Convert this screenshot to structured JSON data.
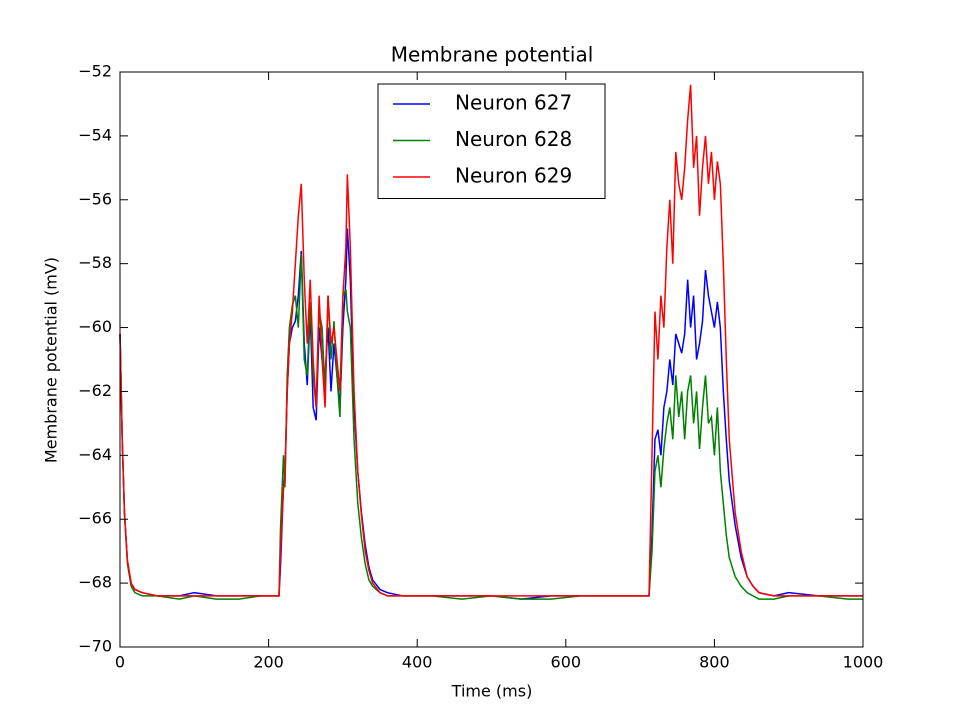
{
  "chart_data": {
    "type": "line",
    "title": "Membrane potential",
    "xlabel": "Time (ms)",
    "ylabel": "Membrane potential (mV)",
    "x": [
      0,
      3,
      6,
      10,
      15,
      20,
      30,
      50,
      80,
      100,
      130,
      160,
      190,
      210,
      214,
      216,
      220,
      222,
      225,
      228,
      232,
      236,
      240,
      244,
      248,
      252,
      256,
      260,
      264,
      268,
      272,
      276,
      280,
      284,
      288,
      292,
      296,
      300,
      304,
      306,
      310,
      315,
      320,
      325,
      330,
      335,
      340,
      350,
      360,
      380,
      420,
      460,
      500,
      540,
      580,
      620,
      660,
      700,
      712,
      716,
      720,
      724,
      728,
      732,
      736,
      740,
      744,
      748,
      752,
      756,
      760,
      764,
      768,
      772,
      776,
      780,
      784,
      788,
      792,
      796,
      800,
      804,
      808,
      812,
      816,
      820,
      828,
      836,
      844,
      852,
      860,
      880,
      900,
      940,
      980,
      1000
    ],
    "series": [
      {
        "name": "Neuron 627",
        "color": "#0000ff",
        "values": [
          -60.2,
          -63.5,
          -65.8,
          -67.3,
          -68.0,
          -68.2,
          -68.3,
          -68.4,
          -68.4,
          -68.3,
          -68.4,
          -68.4,
          -68.4,
          -68.4,
          -68.4,
          -67.5,
          -65.0,
          -64.5,
          -62.0,
          -60.5,
          -60.0,
          -59.8,
          -59.0,
          -57.6,
          -60.5,
          -61.8,
          -59.5,
          -62.5,
          -62.9,
          -60.0,
          -61.0,
          -61.5,
          -60.0,
          -62.0,
          -60.5,
          -61.5,
          -62.5,
          -60.0,
          -58.5,
          -56.9,
          -58.5,
          -62.5,
          -64.5,
          -65.8,
          -66.8,
          -67.5,
          -67.9,
          -68.2,
          -68.3,
          -68.4,
          -68.4,
          -68.4,
          -68.4,
          -68.5,
          -68.4,
          -68.4,
          -68.4,
          -68.4,
          -68.4,
          -66.5,
          -63.5,
          -63.2,
          -64.0,
          -62.5,
          -62.0,
          -61.0,
          -61.8,
          -60.2,
          -60.5,
          -60.8,
          -60.2,
          -58.5,
          -60.0,
          -59.0,
          -61.0,
          -60.5,
          -59.8,
          -58.2,
          -59.0,
          -59.5,
          -60.0,
          -59.2,
          -60.0,
          -62.0,
          -63.5,
          -64.8,
          -66.2,
          -67.2,
          -67.8,
          -68.1,
          -68.3,
          -68.4,
          -68.3,
          -68.4,
          -68.4,
          -68.4
        ]
      },
      {
        "name": "Neuron 628",
        "color": "#008000",
        "values": [
          -60.2,
          -63.5,
          -65.8,
          -67.4,
          -68.1,
          -68.3,
          -68.4,
          -68.4,
          -68.5,
          -68.4,
          -68.5,
          -68.5,
          -68.4,
          -68.4,
          -68.4,
          -66.3,
          -64.0,
          -65.0,
          -61.5,
          -60.0,
          -59.3,
          -59.0,
          -60.0,
          -57.7,
          -61.0,
          -61.5,
          -59.2,
          -61.5,
          -62.5,
          -59.5,
          -60.0,
          -62.0,
          -59.0,
          -61.0,
          -59.8,
          -61.5,
          -62.8,
          -59.0,
          -58.8,
          -59.5,
          -60.0,
          -63.5,
          -65.5,
          -66.6,
          -67.4,
          -67.9,
          -68.1,
          -68.3,
          -68.4,
          -68.4,
          -68.4,
          -68.5,
          -68.4,
          -68.5,
          -68.5,
          -68.4,
          -68.4,
          -68.4,
          -68.4,
          -67.0,
          -64.5,
          -64.0,
          -65.0,
          -63.8,
          -63.0,
          -62.5,
          -63.5,
          -61.5,
          -62.8,
          -62.0,
          -63.5,
          -62.0,
          -61.5,
          -63.0,
          -62.0,
          -63.8,
          -62.5,
          -61.5,
          -63.0,
          -62.8,
          -64.0,
          -62.5,
          -64.5,
          -65.5,
          -66.5,
          -67.2,
          -67.8,
          -68.1,
          -68.3,
          -68.4,
          -68.5,
          -68.5,
          -68.4,
          -68.4,
          -68.5,
          -68.5
        ]
      },
      {
        "name": "Neuron 629",
        "color": "#ff0000",
        "values": [
          -60.2,
          -63.5,
          -65.8,
          -67.3,
          -68.0,
          -68.2,
          -68.3,
          -68.4,
          -68.4,
          -68.4,
          -68.4,
          -68.4,
          -68.4,
          -68.4,
          -68.4,
          -67.0,
          -65.0,
          -64.8,
          -62.0,
          -60.5,
          -59.5,
          -58.0,
          -56.5,
          -55.5,
          -58.5,
          -60.5,
          -58.5,
          -61.0,
          -62.5,
          -59.0,
          -61.0,
          -62.5,
          -59.0,
          -60.5,
          -60.0,
          -61.0,
          -62.0,
          -59.0,
          -57.5,
          -55.2,
          -57.5,
          -62.0,
          -64.5,
          -65.9,
          -67.0,
          -67.6,
          -68.0,
          -68.3,
          -68.4,
          -68.4,
          -68.4,
          -68.4,
          -68.4,
          -68.4,
          -68.4,
          -68.4,
          -68.4,
          -68.4,
          -68.4,
          -64.0,
          -59.5,
          -61.0,
          -59.0,
          -60.0,
          -57.5,
          -56.0,
          -58.0,
          -54.5,
          -55.5,
          -56.0,
          -55.0,
          -53.5,
          -52.4,
          -55.0,
          -54.0,
          -56.5,
          -55.0,
          -54.0,
          -55.5,
          -54.5,
          -56.0,
          -54.8,
          -55.5,
          -58.0,
          -61.0,
          -63.5,
          -65.8,
          -67.0,
          -67.8,
          -68.1,
          -68.3,
          -68.4,
          -68.4,
          -68.4,
          -68.4,
          -68.4
        ]
      }
    ],
    "xlim": [
      0,
      1000
    ],
    "xticks": [
      0,
      200,
      400,
      600,
      800,
      1000
    ],
    "ylim": [
      -70,
      -52
    ],
    "yticks": [
      {
        "value": -70,
        "label": "−70"
      },
      {
        "value": -68,
        "label": "−68"
      },
      {
        "value": -66,
        "label": "−66"
      },
      {
        "value": -64,
        "label": "−64"
      },
      {
        "value": -62,
        "label": "−62"
      },
      {
        "value": -60,
        "label": "−60"
      },
      {
        "value": -58,
        "label": "−58"
      },
      {
        "value": -56,
        "label": "−56"
      },
      {
        "value": -54,
        "label": "−54"
      },
      {
        "value": -52,
        "label": "−52"
      }
    ],
    "legend": "upper center",
    "grid": false
  }
}
